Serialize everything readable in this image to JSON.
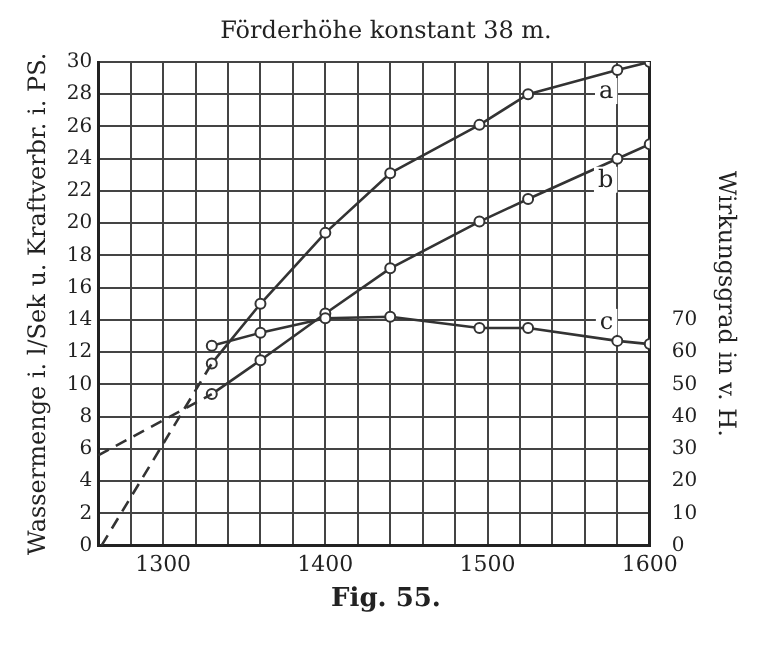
{
  "chart_data": {
    "type": "line",
    "title": "Förderhöhe konstant 38 m.",
    "ylabel": "Wassermenge i. l/Sek u. Kraftverbr. i. PS.",
    "y2label": "Wirkungsgrad in v. H.",
    "annotations": [
      "Fig. 55."
    ],
    "xlim": [
      1260,
      1600
    ],
    "xticks": [
      {
        "value": 1260,
        "label": null
      },
      {
        "value": 1280,
        "label": null
      },
      1300,
      {
        "value": 1320,
        "label": null
      },
      {
        "value": 1340,
        "label": null
      },
      {
        "value": 1360,
        "label": null
      },
      {
        "value": 1380,
        "label": null
      },
      1400,
      {
        "value": 1420,
        "label": null
      },
      {
        "value": 1440,
        "label": null
      },
      {
        "value": 1460,
        "label": null
      },
      {
        "value": 1480,
        "label": null
      },
      1500,
      {
        "value": 1520,
        "label": null
      },
      {
        "value": 1540,
        "label": null
      },
      {
        "value": 1560,
        "label": null
      },
      {
        "value": 1580,
        "label": null
      },
      1600
    ],
    "ylim": [
      0,
      30
    ],
    "yticks": [
      0,
      2,
      4,
      6,
      8,
      10,
      12,
      14,
      16,
      18,
      20,
      22,
      24,
      26,
      28,
      30
    ],
    "y2lim": [
      0,
      150
    ],
    "y2ticks": [
      0,
      10,
      20,
      30,
      40,
      50,
      60,
      70
    ],
    "grid": true,
    "legend": false,
    "marker": "circle",
    "line_style": "solid",
    "series": [
      {
        "name": "a",
        "color": "#333333",
        "x": [
          1330,
          1360,
          1400,
          1440,
          1495,
          1525,
          1580,
          1600
        ],
        "values": [
          11.3,
          15,
          19.4,
          23.1,
          26.1,
          28,
          29.5,
          30
        ]
      },
      {
        "name": "b",
        "color": "#333333",
        "x": [
          1330,
          1360,
          1400,
          1440,
          1495,
          1525,
          1580,
          1600
        ],
        "values": [
          9.4,
          11.5,
          14.4,
          17.2,
          20.1,
          21.5,
          24,
          24.9
        ]
      },
      {
        "name": "c",
        "color": "#333333",
        "axis": "y2",
        "x": [
          1330,
          1360,
          1400,
          1440,
          1495,
          1525,
          1580,
          1600
        ],
        "values": [
          62,
          66,
          70.5,
          71,
          67.5,
          67.5,
          63.5,
          62.5
        ]
      },
      {
        "color": "#333333",
        "x": [
          1262,
          1330
        ],
        "values": [
          0,
          11.3
        ],
        "line_style": "dashed",
        "marker": "none"
      },
      {
        "color": "#333333",
        "x": [
          1260,
          1330
        ],
        "values": [
          5.6,
          9.4
        ],
        "line_style": "dashed",
        "marker": "none"
      }
    ]
  }
}
